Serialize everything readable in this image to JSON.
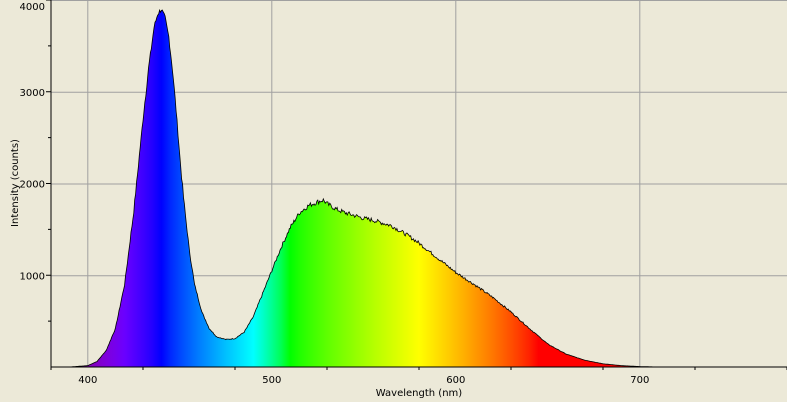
{
  "chart_data": {
    "type": "area",
    "title": "",
    "xlabel": "Wavelength (nm)",
    "ylabel": "Intensity (counts)",
    "xlim": [
      380,
      780
    ],
    "ylim": [
      0,
      4000
    ],
    "x_ticks": [
      400,
      500,
      600,
      700
    ],
    "y_ticks": [
      1000,
      2000,
      3000,
      4000
    ],
    "grid": true,
    "fill": "visible-spectrum gradient by wavelength",
    "background_color": "#ece9d8",
    "grid_color": "#a0a0a0",
    "series": [
      {
        "x": [
          380,
          390,
          400,
          405,
          410,
          415,
          420,
          425,
          430,
          433,
          436,
          438,
          440,
          442,
          444,
          446,
          448,
          450,
          452,
          455,
          458,
          462,
          466,
          470,
          475,
          480,
          485,
          490,
          495,
          500,
          505,
          510,
          515,
          520,
          525,
          528,
          530,
          535,
          540,
          545,
          550,
          555,
          560,
          565,
          570,
          575,
          580,
          585,
          590,
          595,
          600,
          610,
          620,
          630,
          640,
          650,
          660,
          670,
          680,
          690,
          700,
          710,
          720,
          740,
          760,
          780
        ],
        "values": [
          0,
          0,
          15,
          60,
          180,
          420,
          900,
          1700,
          2700,
          3250,
          3700,
          3850,
          3900,
          3800,
          3600,
          3250,
          2800,
          2300,
          1850,
          1300,
          900,
          600,
          420,
          330,
          300,
          310,
          380,
          550,
          800,
          1050,
          1300,
          1520,
          1680,
          1760,
          1800,
          1820,
          1780,
          1720,
          1680,
          1650,
          1620,
          1600,
          1570,
          1540,
          1480,
          1420,
          1350,
          1270,
          1190,
          1110,
          1030,
          900,
          760,
          600,
          420,
          250,
          140,
          75,
          35,
          15,
          5,
          0,
          0,
          0,
          0,
          0
        ]
      }
    ]
  }
}
